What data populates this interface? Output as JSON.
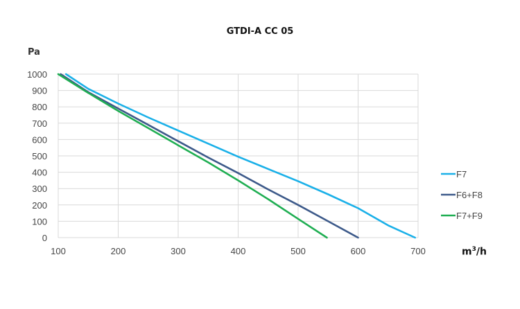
{
  "chart_data": {
    "type": "line",
    "title": "GTDI-A CC 05",
    "ylabel": "Pa",
    "xlabel_base": "m",
    "xlabel_sup": "3",
    "xlabel_tail": "/h",
    "xlim": [
      100,
      700
    ],
    "ylim": [
      0,
      1000
    ],
    "xticks": [
      100,
      200,
      300,
      400,
      500,
      600,
      700
    ],
    "yticks": [
      0,
      100,
      200,
      300,
      400,
      500,
      600,
      700,
      800,
      900,
      1000
    ],
    "grid": true,
    "legend_position": "right",
    "series": [
      {
        "name": "F7",
        "color": "#1ab0e8",
        "x": [
          113,
          150,
          200,
          250,
          300,
          350,
          400,
          450,
          500,
          550,
          600,
          650,
          695
        ],
        "y": [
          1000,
          910,
          820,
          735,
          655,
          575,
          495,
          420,
          345,
          265,
          180,
          75,
          0
        ]
      },
      {
        "name": "F6+F8",
        "color": "#3d5a8a",
        "x": [
          104,
          150,
          200,
          250,
          300,
          350,
          400,
          450,
          500,
          550,
          600
        ],
        "y": [
          1000,
          890,
          790,
          690,
          590,
          490,
          395,
          295,
          200,
          100,
          0
        ]
      },
      {
        "name": "F7+F9",
        "color": "#1fae52",
        "x": [
          100,
          150,
          200,
          250,
          300,
          350,
          400,
          450,
          500,
          548
        ],
        "y": [
          1000,
          885,
          775,
          670,
          565,
          460,
          350,
          235,
          115,
          0
        ]
      }
    ]
  }
}
